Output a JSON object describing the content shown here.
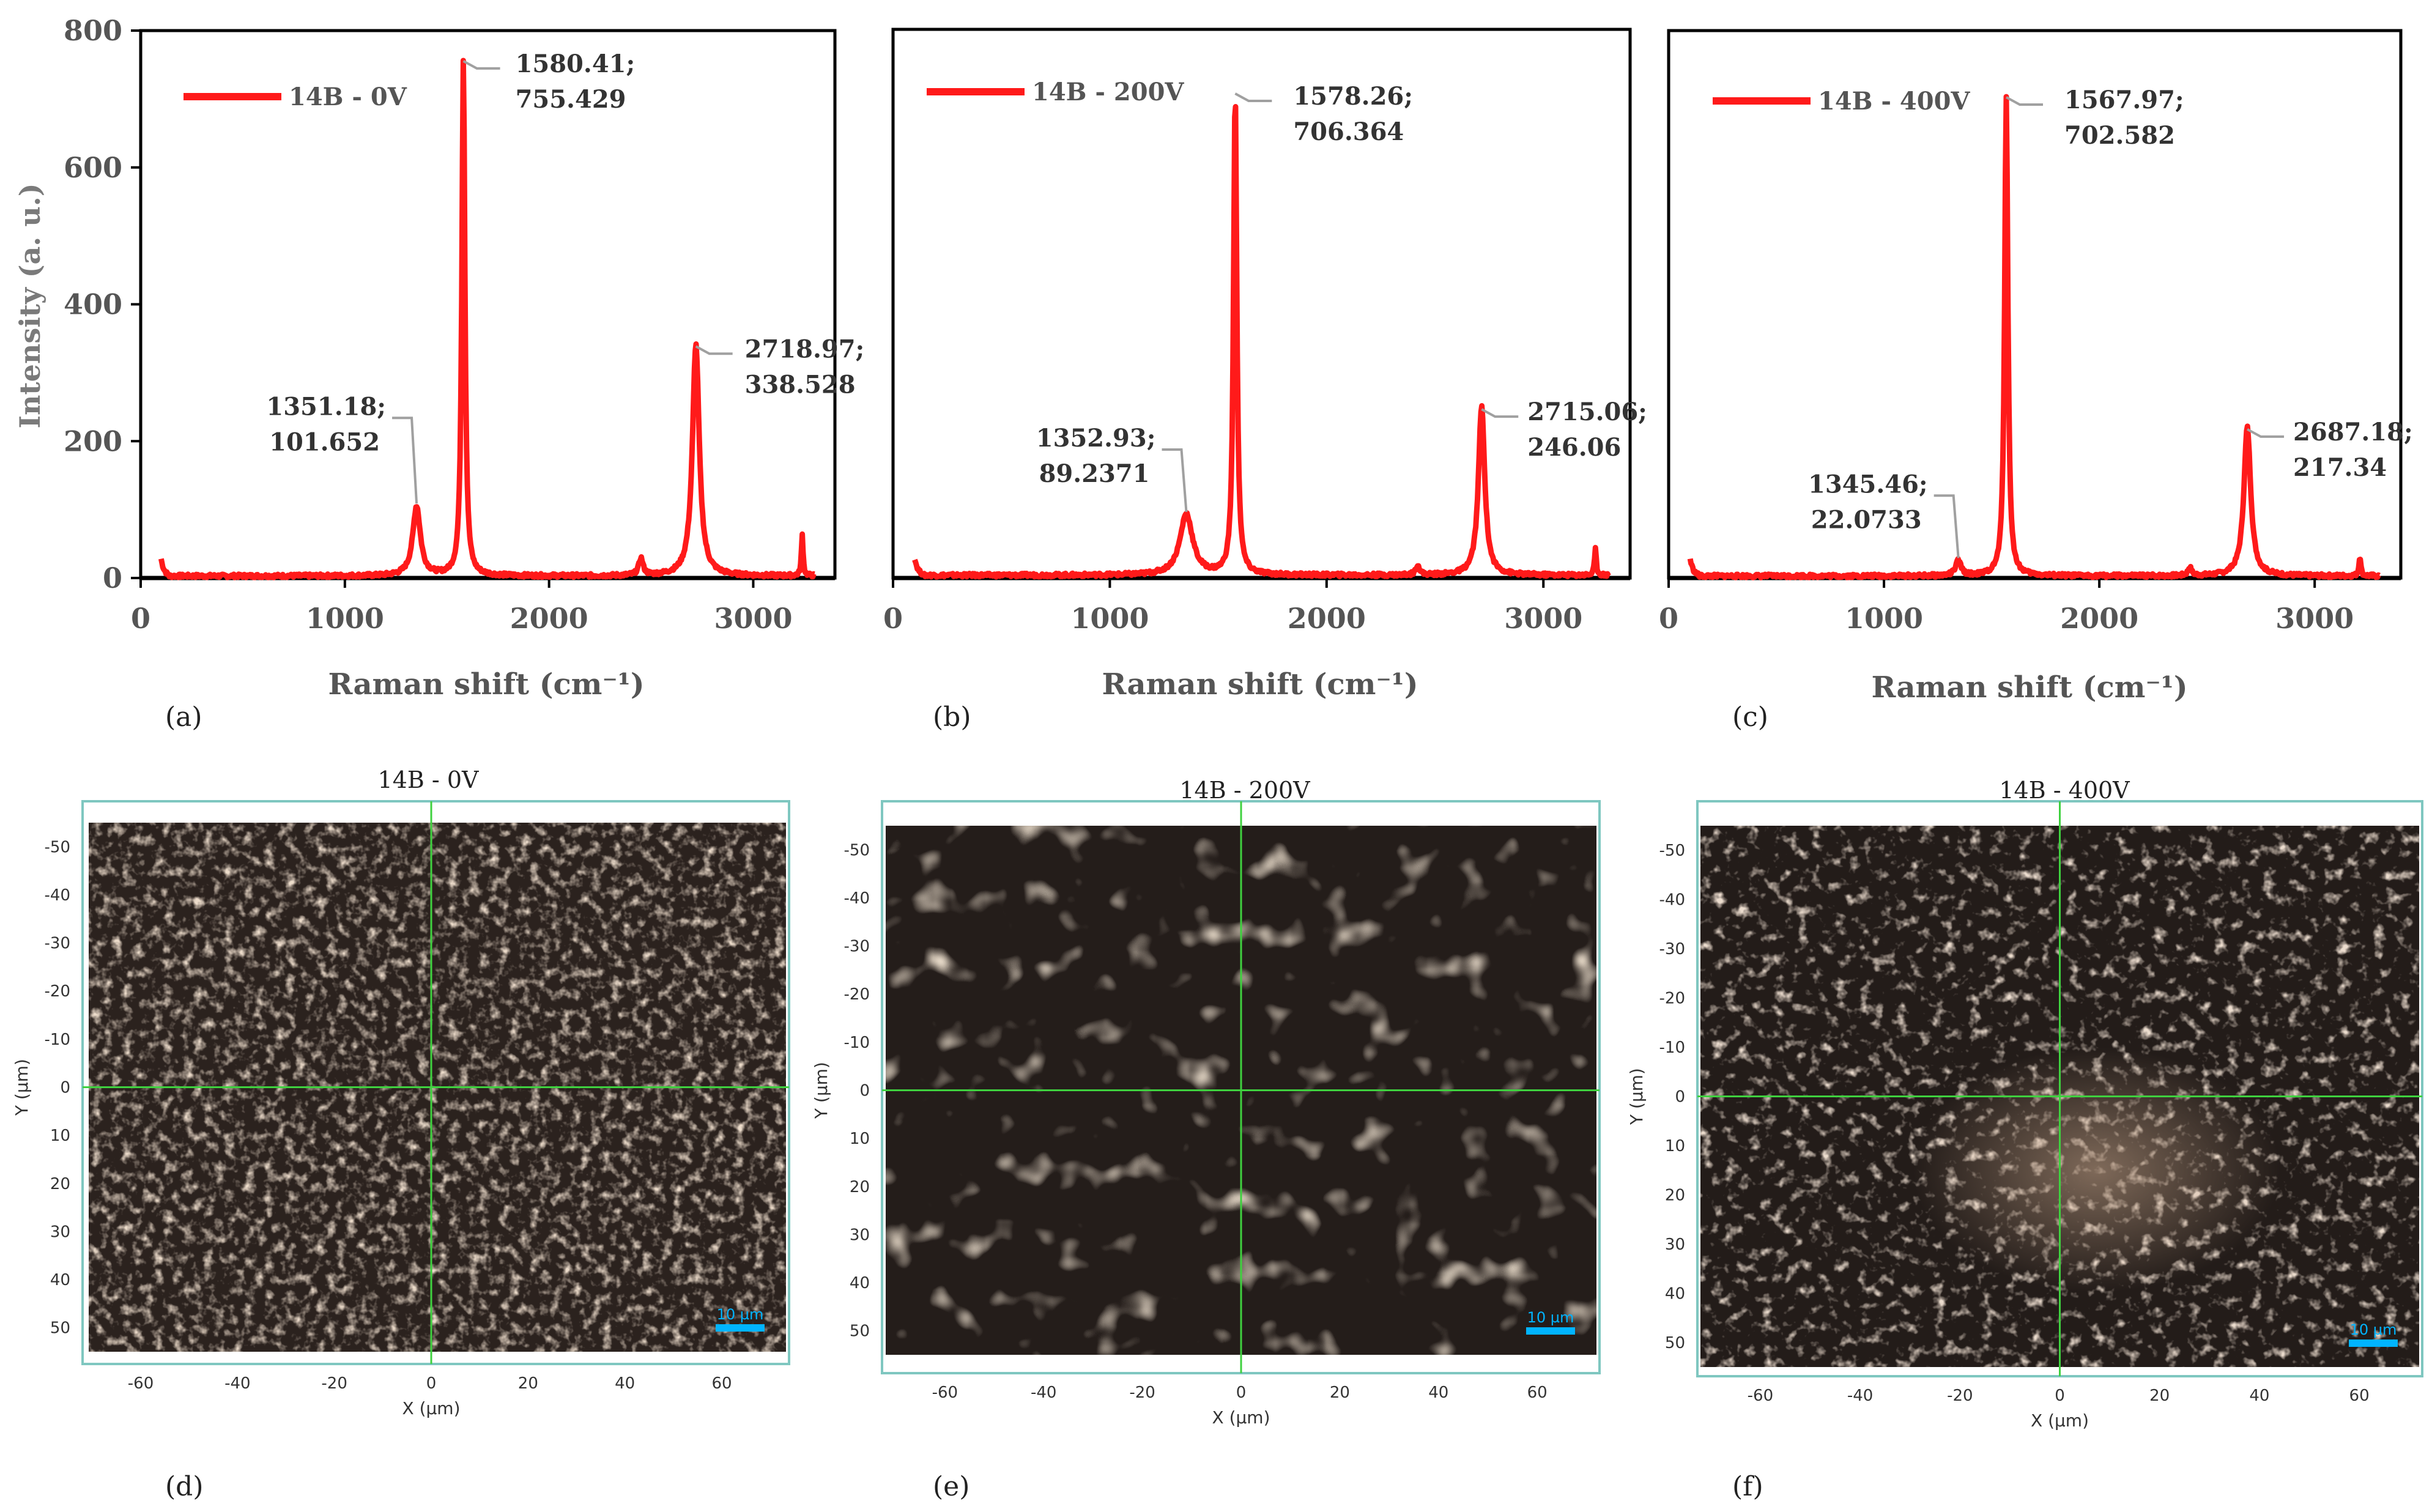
{
  "raman": {
    "ylabel": "Intensity (a. u.)",
    "xlabel": "Raman shift (cm⁻¹)",
    "x_ticks": [
      "0",
      "1000",
      "2000",
      "3000"
    ],
    "y_ticks": [
      "0",
      "200",
      "400",
      "600",
      "800"
    ],
    "line_color": "#ff1a1a",
    "leader_color": "#a0a0a0"
  },
  "chart_data": [
    {
      "type": "line",
      "panel_label": "(a)",
      "xlim": [
        0,
        3400
      ],
      "ylim": [
        0,
        800
      ],
      "series": [
        {
          "name": "14B - 0V",
          "peaks": [
            {
              "x": 1351.18,
              "y": 101.652,
              "width": 45
            },
            {
              "x": 1580.41,
              "y": 755.429,
              "width": 18
            },
            {
              "x": 2718.97,
              "y": 338.528,
              "width": 40
            },
            {
              "x": 2450,
              "y": 25,
              "width": 25
            },
            {
              "x": 3240,
              "y": 60,
              "width": 10
            }
          ],
          "baseline": 3
        }
      ],
      "annotations": [
        {
          "x": 1351.18,
          "y": 101.652,
          "line1": "1351.18;",
          "line2": "101.652"
        },
        {
          "x": 1580.41,
          "y": 755.429,
          "line1": "1580.41;",
          "line2": "755.429"
        },
        {
          "x": 2718.97,
          "y": 338.528,
          "line1": "2718.97;",
          "line2": "338.528"
        }
      ]
    },
    {
      "type": "line",
      "panel_label": "(b)",
      "xlim": [
        0,
        3400
      ],
      "ylim": [
        0,
        800
      ],
      "series": [
        {
          "name": "14B - 200V",
          "peaks": [
            {
              "x": 1352.93,
              "y": 89.2371,
              "width": 70
            },
            {
              "x": 1578.26,
              "y": 706.364,
              "width": 18
            },
            {
              "x": 2715.06,
              "y": 246.06,
              "width": 35
            },
            {
              "x": 2420,
              "y": 15,
              "width": 20
            },
            {
              "x": 3240,
              "y": 38,
              "width": 10
            }
          ],
          "baseline": 4
        }
      ],
      "annotations": [
        {
          "x": 1352.93,
          "y": 89.2371,
          "line1": "1352.93;",
          "line2": "89.2371"
        },
        {
          "x": 1578.26,
          "y": 706.364,
          "line1": "1578.26;",
          "line2": "706.364"
        },
        {
          "x": 2715.06,
          "y": 246.06,
          "line1": "2715.06;",
          "line2": "246.06"
        }
      ]
    },
    {
      "type": "line",
      "panel_label": "(c)",
      "xlim": [
        0,
        3400
      ],
      "ylim": [
        0,
        800
      ],
      "series": [
        {
          "name": "14B - 400V",
          "peaks": [
            {
              "x": 1345.46,
              "y": 22.0733,
              "width": 30
            },
            {
              "x": 1567.97,
              "y": 702.582,
              "width": 18
            },
            {
              "x": 2687.18,
              "y": 217.34,
              "width": 38
            },
            {
              "x": 2420,
              "y": 12,
              "width": 20
            },
            {
              "x": 3210,
              "y": 30,
              "width": 10
            }
          ],
          "baseline": 3
        }
      ],
      "annotations": [
        {
          "x": 1345.46,
          "y": 22.0733,
          "line1": "1345.46;",
          "line2": "22.0733"
        },
        {
          "x": 1567.97,
          "y": 702.582,
          "line1": "1567.97;",
          "line2": "702.582"
        },
        {
          "x": 2687.18,
          "y": 217.34,
          "line1": "2687.18;",
          "line2": "217.34"
        }
      ]
    }
  ],
  "micrographs": {
    "x_label": "X (µm)",
    "y_label": "Y (µm)",
    "x_ticks": [
      "-60",
      "-40",
      "-20",
      "0",
      "20",
      "40",
      "60"
    ],
    "y_ticks": [
      "-50",
      "-40",
      "-30",
      "-20",
      "-10",
      "0",
      "10",
      "20",
      "30",
      "40",
      "50"
    ],
    "scale_bar": "10 µm",
    "crosshair_color": "#3fd13f",
    "frame_color": "#7fc7c0",
    "scale_color": "#00b4ff",
    "panels": [
      {
        "title": "14B - 0V",
        "panel_label": "(d)"
      },
      {
        "title": "14B - 200V",
        "panel_label": "(e)"
      },
      {
        "title": "14B - 400V",
        "panel_label": "(f)"
      }
    ]
  }
}
